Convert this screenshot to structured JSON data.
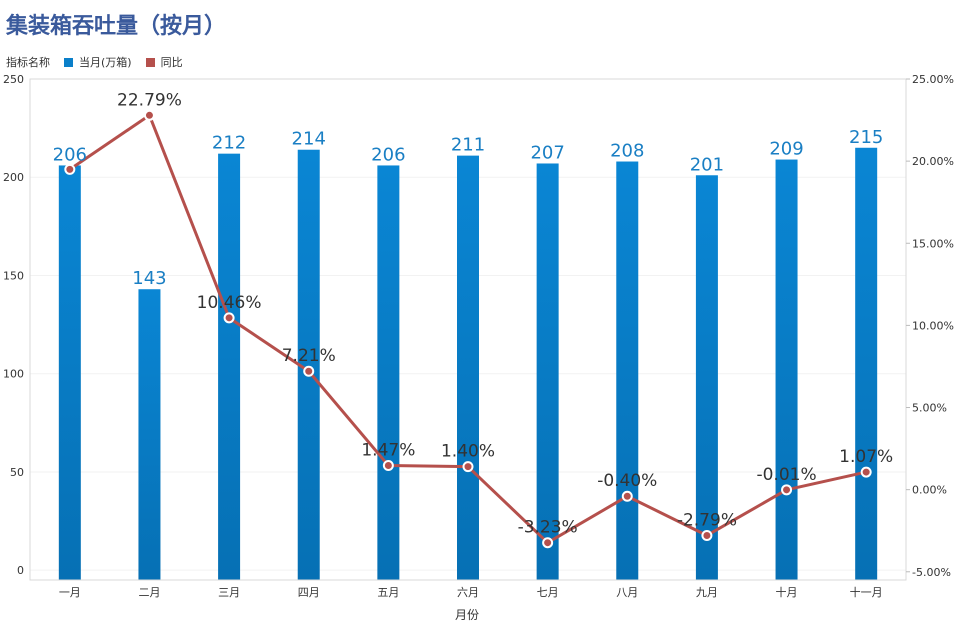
{
  "chart_data": {
    "type": "bar+line",
    "title": "集装箱吞吐量（按月）",
    "legend_title": "指标名称",
    "legend_placement": "top-left",
    "categories": [
      "一月",
      "二月",
      "三月",
      "四月",
      "五月",
      "六月",
      "七月",
      "八月",
      "九月",
      "十月",
      "十一月"
    ],
    "series": [
      {
        "name": "当月(万箱)",
        "type": "bar",
        "axis": "left",
        "color": "#0a7fc9",
        "values": [
          206,
          143,
          212,
          214,
          206,
          211,
          207,
          208,
          201,
          209,
          215
        ],
        "labels": [
          "206",
          "143",
          "212",
          "214",
          "206",
          "211",
          "207",
          "208",
          "201",
          "209",
          "215"
        ]
      },
      {
        "name": "同比",
        "type": "line",
        "axis": "right",
        "color": "#b5504c",
        "values": [
          19.5,
          22.79,
          10.46,
          7.21,
          1.47,
          1.4,
          -3.23,
          -0.4,
          -2.79,
          -0.01,
          1.07
        ],
        "labels": [
          "",
          "22.79%",
          "10.46%",
          "7.21%",
          "1.47%",
          "1.40%",
          "-3.23%",
          "-0.40%",
          "-2.79%",
          "-0.01%",
          "1.07%"
        ]
      }
    ],
    "xlabel": "月份",
    "ylabel": "",
    "ylim": [
      -5,
      250
    ],
    "yticks": [
      "0",
      "50",
      "100",
      "150",
      "200",
      "250"
    ],
    "y2lim": [
      -5.5,
      25
    ],
    "y2ticks": [
      "-5.00%",
      "0.00%",
      "5.00%",
      "10.00%",
      "15.00%",
      "20.00%",
      "25.00%"
    ],
    "grid": true
  }
}
